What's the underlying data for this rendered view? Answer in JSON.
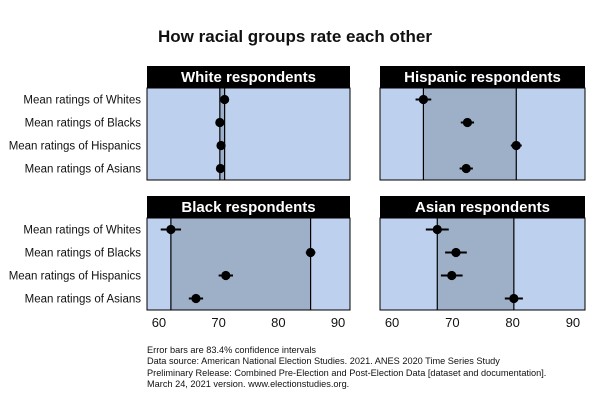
{
  "title": "How racial groups rate each other",
  "chart_data": {
    "type": "scatter",
    "subtype": "dot-plot-with-error-bars",
    "xlim": [
      58,
      92
    ],
    "x_ticks": [
      60,
      70,
      80,
      90
    ],
    "row_labels": [
      "Mean ratings of Whites",
      "Mean ratings of Blacks",
      "Mean ratings of Hispanics",
      "Mean ratings of Asians"
    ],
    "colors": {
      "panel_bg": "#bdd0ee",
      "range_band": "#9eb0c8",
      "header_bg": "#000000",
      "header_text": "#ffffff",
      "point": "#000000"
    },
    "panels": [
      {
        "title": "White respondents",
        "points": [
          {
            "row": "Mean ratings of Whites",
            "value": 71.0,
            "low": 70.6,
            "high": 71.4
          },
          {
            "row": "Mean ratings of Blacks",
            "value": 70.2,
            "low": 69.8,
            "high": 70.6
          },
          {
            "row": "Mean ratings of Hispanics",
            "value": 70.4,
            "low": 70.0,
            "high": 70.8
          },
          {
            "row": "Mean ratings of Asians",
            "value": 70.3,
            "low": 69.9,
            "high": 70.7
          }
        ]
      },
      {
        "title": "Hispanic respondents",
        "points": [
          {
            "row": "Mean ratings of Whites",
            "value": 65.2,
            "low": 63.9,
            "high": 66.5
          },
          {
            "row": "Mean ratings of Blacks",
            "value": 72.5,
            "low": 71.4,
            "high": 73.6
          },
          {
            "row": "Mean ratings of Hispanics",
            "value": 80.6,
            "low": 79.7,
            "high": 81.5
          },
          {
            "row": "Mean ratings of Asians",
            "value": 72.3,
            "low": 71.2,
            "high": 73.4
          }
        ]
      },
      {
        "title": "Black respondents",
        "points": [
          {
            "row": "Mean ratings of Whites",
            "value": 62.0,
            "low": 60.3,
            "high": 63.7
          },
          {
            "row": "Mean ratings of Blacks",
            "value": 85.4,
            "low": 84.6,
            "high": 86.2
          },
          {
            "row": "Mean ratings of Hispanics",
            "value": 71.2,
            "low": 70.0,
            "high": 72.4
          },
          {
            "row": "Mean ratings of Asians",
            "value": 66.2,
            "low": 65.0,
            "high": 67.4
          }
        ]
      },
      {
        "title": "Asian respondents",
        "points": [
          {
            "row": "Mean ratings of Whites",
            "value": 67.5,
            "low": 65.6,
            "high": 69.4
          },
          {
            "row": "Mean ratings of Blacks",
            "value": 70.6,
            "low": 68.8,
            "high": 72.4
          },
          {
            "row": "Mean ratings of Hispanics",
            "value": 69.9,
            "low": 68.1,
            "high": 71.7
          },
          {
            "row": "Mean ratings of Asians",
            "value": 80.2,
            "low": 78.7,
            "high": 81.7
          }
        ]
      }
    ]
  },
  "notes": [
    "Error bars are 83.4% confidence intervals",
    "Data source: American National Election Studies. 2021. ANES 2020 Time Series Study",
    "Preliminary Release: Combined Pre-Election and Post-Election Data [dataset and documentation].",
    "March 24, 2021 version. www.electionstudies.org."
  ]
}
